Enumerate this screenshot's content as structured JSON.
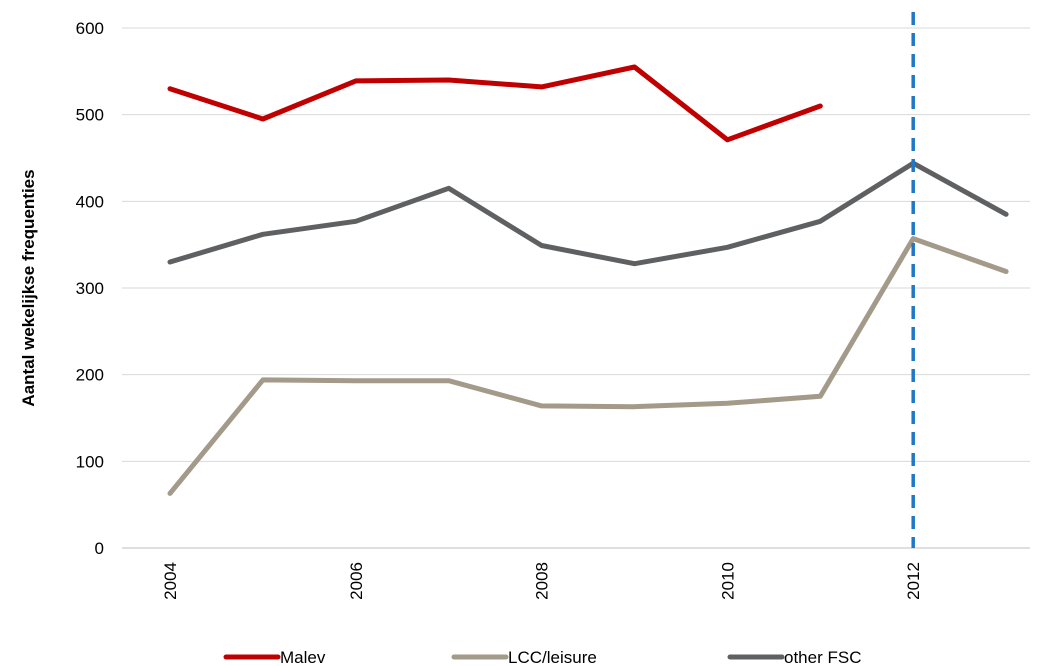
{
  "chart_data": {
    "type": "line",
    "title": "",
    "xlabel": "",
    "ylabel": "Aantal wekelijkse frequenties",
    "x": [
      2004,
      2005,
      2006,
      2007,
      2008,
      2009,
      2010,
      2011,
      2012,
      2013
    ],
    "x_tick_labels": [
      "2004",
      "2006",
      "2008",
      "2010",
      "2012"
    ],
    "y_tick_labels": [
      "0",
      "100",
      "200",
      "300",
      "400",
      "500",
      "600"
    ],
    "ylim": [
      0,
      600
    ],
    "grid": "horizontal",
    "legend_position": "bottom",
    "series": [
      {
        "name": "Malev",
        "color": "#c00000",
        "values": [
          530,
          495,
          539,
          540,
          532,
          555,
          471,
          510,
          null,
          null
        ]
      },
      {
        "name": "LCC/leisure",
        "color": "#a39a8a",
        "values": [
          63,
          194,
          193,
          193,
          164,
          163,
          167,
          175,
          357,
          319
        ]
      },
      {
        "name": "other FSC",
        "color": "#5f6062",
        "values": [
          330,
          362,
          377,
          415,
          349,
          328,
          347,
          377,
          444,
          385
        ]
      }
    ],
    "annotations": [
      {
        "type": "vertical-dashed-line",
        "x": 2012,
        "color": "#1f77c8"
      }
    ]
  }
}
